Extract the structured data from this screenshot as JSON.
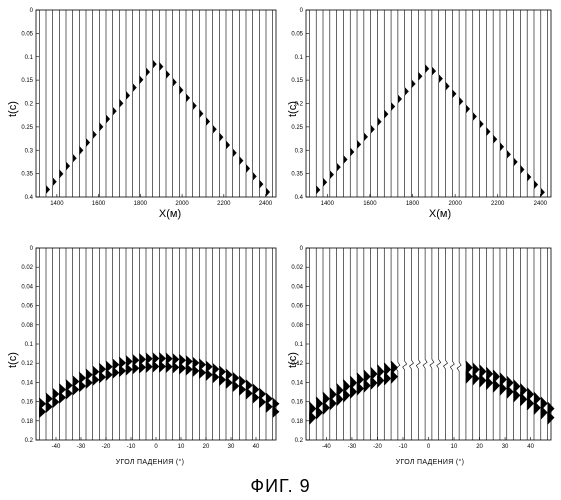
{
  "figure": {
    "caption": "ФИГ. 9"
  },
  "chart_data": [
    {
      "type": "wiggle",
      "ylabel": "t(c)",
      "xlabel": "X(м)",
      "xlim": [
        1300,
        2450
      ],
      "ylim": [
        0,
        0.4
      ],
      "x_ticks": [
        1400,
        1600,
        1800,
        2000,
        2200,
        2400
      ],
      "y_ticks": [
        "0",
        "0.05",
        "0.1",
        "0.15",
        "0.2",
        "0.25",
        "0.3",
        "0.35",
        "0.4"
      ],
      "n_traces": 36,
      "event": {
        "kind": "hyperbola",
        "apex_x": 1870,
        "apex_t": 0.11,
        "t_at_edges": 0.4
      }
    },
    {
      "type": "wiggle",
      "ylabel": "t(c)",
      "xlabel": "X(м)",
      "xlim": [
        1300,
        2450
      ],
      "ylim": [
        0,
        0.4
      ],
      "x_ticks": [
        1400,
        1600,
        1800,
        2000,
        2200,
        2400
      ],
      "y_ticks": [
        "0",
        "0.05",
        "0.1",
        "0.15",
        "0.2",
        "0.25",
        "0.3",
        "0.35",
        "0.4"
      ],
      "n_traces": 36,
      "event": {
        "kind": "hyperbola",
        "apex_x": 1870,
        "apex_t": 0.12,
        "t_at_edges": 0.4
      }
    },
    {
      "type": "wiggle",
      "ylabel": "t(c)",
      "xlabel": "УГОЛ ПАДЕНИЯ (°)",
      "xlim": [
        -48,
        48
      ],
      "ylim": [
        0,
        0.2
      ],
      "x_ticks": [
        -40,
        -30,
        -20,
        -10,
        0,
        10,
        20,
        30,
        40
      ],
      "y_ticks": [
        "0",
        "0.02",
        "0.04",
        "0.06",
        "0.08",
        "0.1",
        "0.12",
        "0.14",
        "0.16",
        "0.18",
        "0.2"
      ],
      "n_traces": 36,
      "event": {
        "kind": "arc",
        "apex_angle": 0,
        "apex_t": 0.115,
        "t_at_edges": 0.165
      }
    },
    {
      "type": "wiggle",
      "ylabel": "t(c)",
      "xlabel": "УГОЛ ПАДЕНИЯ (°)",
      "xlim": [
        -48,
        48
      ],
      "ylim": [
        0,
        0.2
      ],
      "x_ticks": [
        -40,
        -30,
        -20,
        -10,
        0,
        10,
        20,
        30,
        40
      ],
      "y_ticks": [
        "0",
        "0.02",
        "0.04",
        "0.06",
        "0.08",
        "0.1",
        "0.12",
        "0.14",
        "0.16",
        "0.18",
        "0.2"
      ],
      "n_traces": 36,
      "event": {
        "kind": "arc-gap",
        "apex_angle": 0,
        "apex_t": 0.12,
        "t_at_edges": 0.17
      }
    }
  ]
}
